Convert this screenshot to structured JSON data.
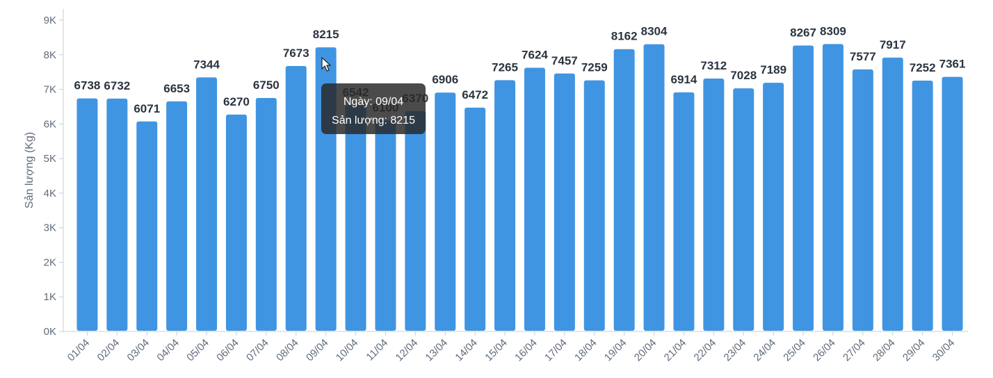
{
  "chart_data": {
    "type": "bar",
    "ylabel": "Sản lượng (Kg)",
    "xlabel": "",
    "ylim": [
      0,
      9000
    ],
    "y_ticks": [
      "0K",
      "1K",
      "2K",
      "3K",
      "4K",
      "5K",
      "6K",
      "7K",
      "8K",
      "9K"
    ],
    "categories": [
      "01/04",
      "02/04",
      "03/04",
      "04/04",
      "05/04",
      "06/04",
      "07/04",
      "08/04",
      "09/04",
      "10/04",
      "11/04",
      "12/04",
      "13/04",
      "14/04",
      "15/04",
      "16/04",
      "17/04",
      "18/04",
      "19/04",
      "20/04",
      "21/04",
      "22/04",
      "23/04",
      "24/04",
      "25/04",
      "26/04",
      "27/04",
      "28/04",
      "29/04",
      "30/04"
    ],
    "values": [
      6738,
      6732,
      6071,
      6653,
      7344,
      6270,
      6750,
      7673,
      8215,
      6542,
      6100,
      6370,
      6906,
      6472,
      7265,
      7624,
      7457,
      7259,
      8162,
      8304,
      6914,
      7312,
      7028,
      7189,
      8267,
      8309,
      7577,
      7917,
      7252,
      7361
    ],
    "bar_color": "#4095e2",
    "grid": false,
    "legend": "none"
  },
  "tooltip": {
    "date_line": "Ngày: 09/04",
    "value_line": "Sản lượng: 8215"
  }
}
